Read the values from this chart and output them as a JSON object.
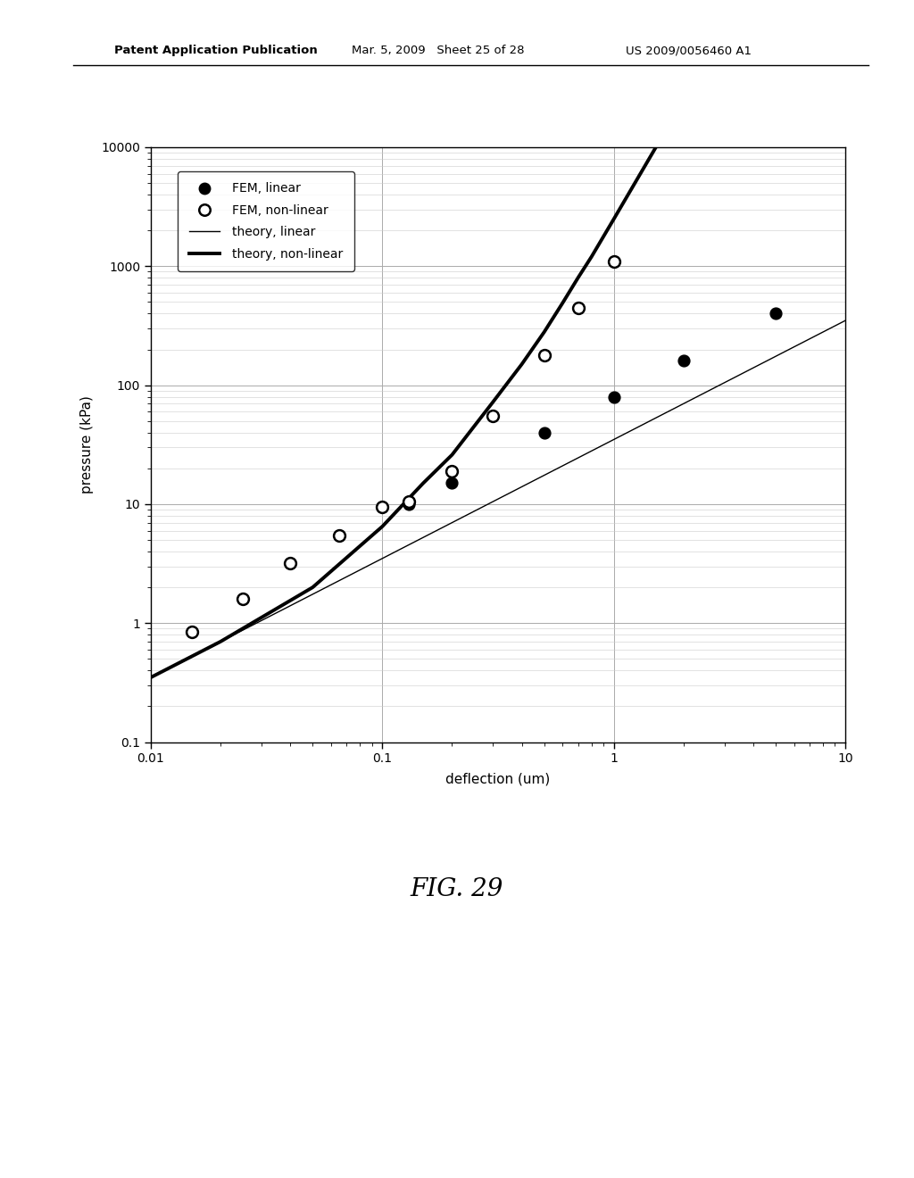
{
  "fem_linear_x": [
    0.13,
    0.2,
    0.5,
    1.0,
    2.0,
    5.0
  ],
  "fem_linear_y": [
    10.0,
    15.0,
    40.0,
    80.0,
    160.0,
    400.0
  ],
  "fem_nonlinear_x": [
    0.015,
    0.025,
    0.04,
    0.065,
    0.1,
    0.13,
    0.2,
    0.3,
    0.5,
    0.7,
    1.0
  ],
  "fem_nonlinear_y": [
    0.85,
    1.6,
    3.2,
    5.5,
    9.5,
    10.5,
    19.0,
    55.0,
    180.0,
    450.0,
    1100.0
  ],
  "theory_linear_x": [
    0.009,
    0.01,
    0.05,
    0.1,
    0.5,
    1.0,
    5.0,
    10.0
  ],
  "theory_linear_y": [
    0.3,
    0.35,
    1.75,
    3.5,
    17.5,
    35.0,
    175.0,
    350.0
  ],
  "theory_nonlinear_x": [
    0.009,
    0.01,
    0.02,
    0.05,
    0.1,
    0.15,
    0.2,
    0.3,
    0.4,
    0.5,
    0.6,
    0.7,
    0.8,
    1.0,
    2.0,
    5.0,
    9.0,
    10.0
  ],
  "theory_nonlinear_y": [
    0.3,
    0.35,
    0.7,
    2.0,
    6.5,
    15.0,
    26.0,
    72.0,
    150.0,
    280.0,
    490.0,
    800.0,
    1200.0,
    2500.0,
    25000.0,
    2000000.0,
    200000000.0,
    400000000.0
  ],
  "xlabel": "deflection (um)",
  "ylabel": "pressure (kPa)",
  "xlim": [
    0.01,
    10
  ],
  "ylim": [
    0.1,
    10000
  ],
  "legend_labels": [
    "FEM, linear",
    "FEM, non-linear",
    "theory, linear",
    "theory, non-linear"
  ],
  "fig_caption": "FIG. 29",
  "header_left": "Patent Application Publication",
  "header_center": "Mar. 5, 2009   Sheet 25 of 28",
  "header_right": "US 2009/0056460 A1",
  "background_color": "#ffffff",
  "grid_color": "#aaaaaa"
}
